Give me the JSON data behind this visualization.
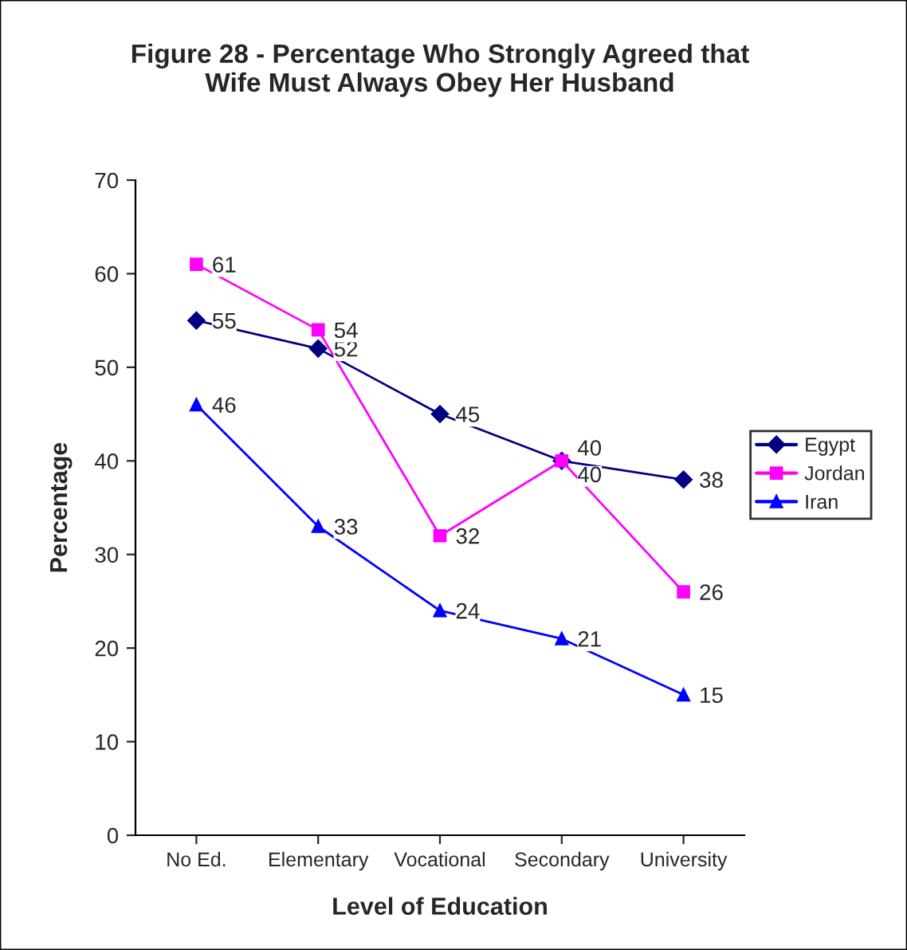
{
  "chart_data": {
    "type": "line",
    "title": "Figure 28 - Percentage Who Strongly Agreed that\nWife Must Always Obey Her Husband",
    "xlabel": "Level of Education",
    "ylabel": "Percentage",
    "categories": [
      "No Ed.",
      "Elementary",
      "Vocational",
      "Secondary",
      "University"
    ],
    "series": [
      {
        "name": "Egypt",
        "color": "#000080",
        "marker": "diamond",
        "values": [
          55,
          52,
          45,
          40,
          38
        ]
      },
      {
        "name": "Jordan",
        "color": "#ff00ff",
        "marker": "square",
        "values": [
          61,
          54,
          32,
          40,
          26
        ]
      },
      {
        "name": "Iran",
        "color": "#0000ff",
        "marker": "triangle",
        "values": [
          46,
          33,
          24,
          21,
          15
        ]
      }
    ],
    "ylim": [
      0,
      70
    ],
    "yticks": [
      0,
      10,
      20,
      30,
      40,
      50,
      60,
      70
    ],
    "data_labels": true,
    "legend": "right",
    "grid": false
  }
}
